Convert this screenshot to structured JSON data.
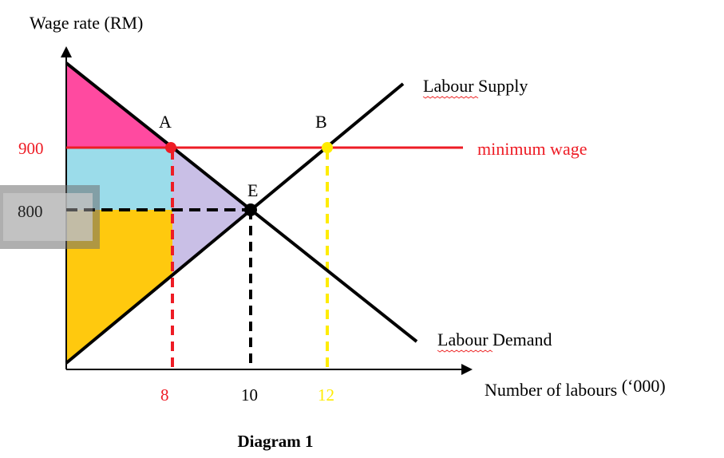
{
  "title": "Diagram 1",
  "y_axis_label": "Wage rate (RM)",
  "x_axis_label": "Number of labours",
  "x_axis_unit": "(‘000)",
  "curves": {
    "supply": "Labour Supply",
    "demand": "Labour Demand",
    "minimum_wage": "minimum wage"
  },
  "points": {
    "a": "A",
    "b": "B",
    "e": "E"
  },
  "y_ticks": {
    "min_wage": "900",
    "equilibrium": "800"
  },
  "x_ticks": {
    "a": "8",
    "e": "10",
    "b": "12"
  },
  "colors": {
    "minimum_wage": "#ee1c25",
    "point_b": "#ffec00",
    "consumer_surplus": "#ff4aa0",
    "transfer_area": "#9bdcea",
    "deadweight_loss": "#c9bfe6",
    "producer_surplus": "#ffc90e"
  }
}
